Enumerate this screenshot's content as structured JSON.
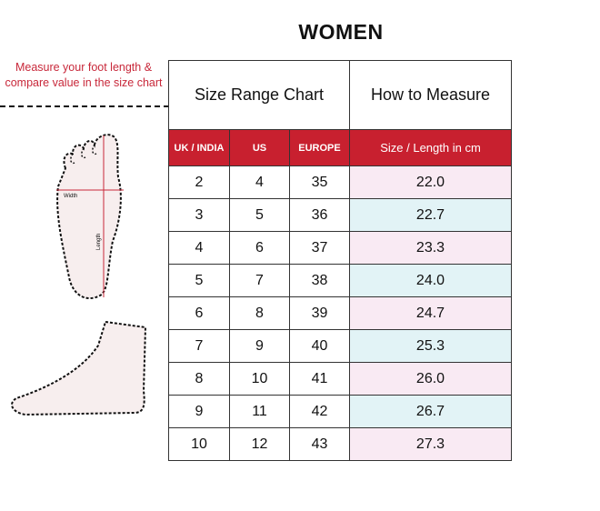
{
  "title": "WOMEN",
  "instruction": "Measure your foot length & compare value in the size chart",
  "header": {
    "size_range": "Size Range Chart",
    "how_to": "How to Measure"
  },
  "columns": [
    "UK / INDIA",
    "US",
    "EUROPE",
    "Size / Length in cm"
  ],
  "rows": [
    [
      "2",
      "4",
      "35",
      "22.0"
    ],
    [
      "3",
      "5",
      "36",
      "22.7"
    ],
    [
      "4",
      "6",
      "37",
      "23.3"
    ],
    [
      "5",
      "7",
      "38",
      "24.0"
    ],
    [
      "6",
      "8",
      "39",
      "24.7"
    ],
    [
      "7",
      "9",
      "40",
      "25.3"
    ],
    [
      "8",
      "10",
      "41",
      "26.0"
    ],
    [
      "9",
      "11",
      "42",
      "26.7"
    ],
    [
      "10",
      "12",
      "43",
      "27.3"
    ]
  ],
  "diagram": {
    "width_label": "Width",
    "length_label": "Length"
  },
  "colors": {
    "accent": "#c8202f",
    "pink": "#f9eaf3",
    "blue": "#e2f3f6"
  }
}
